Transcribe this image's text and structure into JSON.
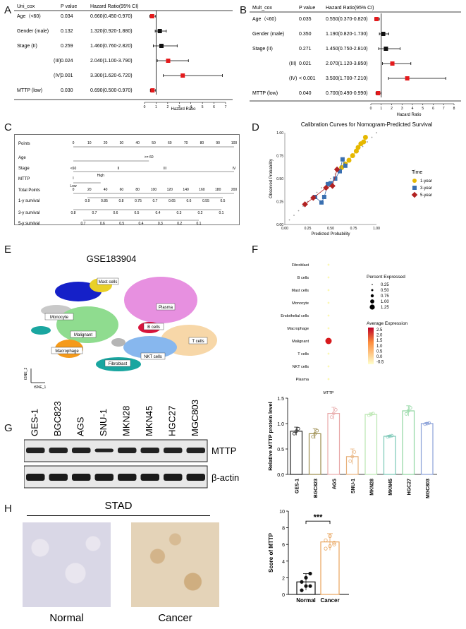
{
  "panels": {
    "A": "A",
    "B": "B",
    "C": "C",
    "D": "D",
    "E": "E",
    "F": "F",
    "G": "G",
    "H": "H"
  },
  "colors": {
    "red": "#e41a1c",
    "black": "#111111",
    "gold": "#e6b800",
    "blue": "#3a6fb0",
    "darkred": "#b22222"
  },
  "panelA": {
    "headers": {
      "col1": "Uni_cox",
      "col2": "P value",
      "col3": "Hazard Ratio(95% CI)"
    },
    "rows": [
      {
        "label": "Age（<60)",
        "p": "0.034",
        "hr": "0.660(0.450-0.970)"
      },
      {
        "label": "Gender (male)",
        "p": "0.132",
        "hr": "1.320(0.920-1.880)"
      },
      {
        "label": "Stage (II)",
        "p": "0.259",
        "hr": "1.460(0.760-2.820)"
      },
      {
        "label": "(III)",
        "p": "0.024",
        "hr": "2.040(1.100-3.790)"
      },
      {
        "label": "(IV)",
        "p": "0.001",
        "hr": "3.300(1.620-6.720)"
      },
      {
        "label": "MTTP (low)",
        "p": "0.030",
        "hr": "0.690(0.500-0.970)"
      }
    ],
    "axis_ticks": [
      "0",
      "1",
      "2",
      "3",
      "4",
      "5",
      "6",
      "7"
    ],
    "xlabel": "Hazard Ratio",
    "chart_data": {
      "type": "forest",
      "x_range": [
        0,
        7
      ],
      "values": [
        0.66,
        1.32,
        1.46,
        2.04,
        3.3,
        0.69
      ],
      "lower": [
        0.45,
        0.92,
        0.76,
        1.1,
        1.62,
        0.5
      ],
      "upper": [
        0.97,
        1.88,
        2.82,
        3.79,
        6.72,
        0.97
      ]
    }
  },
  "panelB": {
    "headers": {
      "col1": "Mult_cox",
      "col2": "P value",
      "col3": "Hazard Ratio(95% CI)"
    },
    "rows": [
      {
        "label": "Age（<60)",
        "p": "0.035",
        "hr": "0.550(0.370-0.820)"
      },
      {
        "label": "Gender (male)",
        "p": "0.350",
        "hr": "1.190(0.820-1.730)"
      },
      {
        "label": "Stage (II)",
        "p": "0.271",
        "hr": "1.450(0.750-2.810)"
      },
      {
        "label": "(III)",
        "p": "0.021",
        "hr": "2.070(1.120-3.850)"
      },
      {
        "label": "(IV)",
        "p": "< 0.001",
        "hr": "3.500(1.700-7.210)"
      },
      {
        "label": "MTTP (low)",
        "p": "0.040",
        "hr": "0.700(0.490-0.990)"
      }
    ],
    "axis_ticks": [
      "0",
      "1",
      "2",
      "3",
      "4",
      "5",
      "6",
      "7",
      "8"
    ],
    "xlabel": "Hazard Ratio",
    "chart_data": {
      "type": "forest",
      "x_range": [
        0,
        8
      ],
      "values": [
        0.55,
        1.19,
        1.45,
        2.07,
        3.5,
        0.7
      ],
      "lower": [
        0.37,
        0.82,
        0.75,
        1.12,
        1.7,
        0.49
      ],
      "upper": [
        0.82,
        1.73,
        2.81,
        3.85,
        7.21,
        0.99
      ]
    }
  },
  "panelC": {
    "rows": [
      {
        "label": "Points"
      },
      {
        "label": "Age"
      },
      {
        "label": "Stage"
      },
      {
        "label": "MTTP"
      },
      {
        "label": "Total Points"
      },
      {
        "label": "1-y survival"
      },
      {
        "label": "3-y survival"
      },
      {
        "label": "5-y survival"
      }
    ],
    "points_ticks": [
      "0",
      "10",
      "20",
      "30",
      "40",
      "50",
      "60",
      "70",
      "80",
      "90",
      "100"
    ],
    "age_labels": {
      "low": "<60",
      ">60": ">= 60"
    },
    "stage_labels": [
      "I",
      "II",
      "III",
      "IV"
    ],
    "mttp_labels": {
      "high": "High",
      "low": "Low"
    },
    "total_ticks": [
      "0",
      "20",
      "40",
      "60",
      "80",
      "100",
      "120",
      "140",
      "160",
      "180",
      "200"
    ],
    "surv1_ticks": [
      "0.9",
      "0.85",
      "0.8",
      "0.75",
      "0.7",
      "0.65",
      "0.6",
      "0.55",
      "0.5"
    ],
    "surv3_ticks": [
      "0.8",
      "0.7",
      "0.6",
      "0.5",
      "0.4",
      "0.3",
      "0.2",
      "0.1"
    ],
    "surv5_ticks": [
      "0.7",
      "0.6",
      "0.5",
      "0.4",
      "0.3",
      "0.2",
      "0.1"
    ]
  },
  "panelD": {
    "chart_data": {
      "type": "line",
      "title": "Calibration Curves for Nomogram-Predicted Survival",
      "xlabel": "Predicted Probability",
      "ylabel": "Observed Probability",
      "x_ticks": [
        "0.00",
        "0.25",
        "0.50",
        "0.75",
        "1.00"
      ],
      "y_ticks": [
        "0.00",
        "0.25",
        "0.50",
        "0.75",
        "1.00"
      ],
      "xlim": [
        0,
        1
      ],
      "ylim": [
        0,
        1
      ],
      "legend_title": "Time",
      "series": [
        {
          "name": "1-year",
          "x": [
            0.62,
            0.66,
            0.7,
            0.74,
            0.78,
            0.8,
            0.83,
            0.86,
            0.88
          ],
          "y": [
            0.62,
            0.66,
            0.7,
            0.75,
            0.8,
            0.84,
            0.88,
            0.9,
            0.95
          ]
        },
        {
          "name": "3-year",
          "x": [
            0.33,
            0.4,
            0.43,
            0.47,
            0.5,
            0.55,
            0.6,
            0.63,
            0.66
          ],
          "y": [
            0.3,
            0.24,
            0.3,
            0.44,
            0.45,
            0.5,
            0.58,
            0.71,
            0.64
          ]
        },
        {
          "name": "5-year",
          "x": [
            0.22,
            0.31,
            0.45,
            0.52,
            0.57
          ],
          "y": [
            0.22,
            0.29,
            0.4,
            0.42,
            0.6
          ]
        }
      ]
    }
  },
  "panelE": {
    "title": "GSE183904",
    "xlabel": "tSNE_1",
    "ylabel": "tSNE_2",
    "clusters": [
      "Mast cells",
      "Plasma",
      "Monocyte",
      "Malignant",
      "B cells",
      "T cells",
      "Macrophage",
      "NKT cells",
      "Fibroblast"
    ]
  },
  "panelF": {
    "cell_types": [
      "Fibroblast",
      "B cells",
      "Mast cells",
      "Monocyte",
      "Endothelial cells",
      "Macrophage",
      "Malignant",
      "T cells",
      "NKT cells",
      "Plasma"
    ],
    "xlabel": "MTTP",
    "legend_pct_title": "Percent Expressed",
    "pct_values": [
      "0.25",
      "0.50",
      "0.75",
      "1.00",
      "1.25"
    ],
    "legend_avg_title": "Average Expression",
    "avg_values": [
      "2.5",
      "2.0",
      "1.5",
      "1.0",
      "0.5",
      "0.0",
      "-0.5"
    ]
  },
  "panelG": {
    "cell_lines": [
      "GES-1",
      "BGC823",
      "AGS",
      "SNU-1",
      "MKN28",
      "MKN45",
      "HGC27",
      "MGC803"
    ],
    "band_labels": {
      "mttp": "MTTP",
      "actin": "β-actin"
    },
    "chart_data": {
      "type": "bar",
      "ylabel": "Relative MTTP protein level",
      "y_ticks": [
        "0.0",
        "0.5",
        "1.0",
        "1.5"
      ],
      "ylim": [
        0,
        1.5
      ],
      "categories": [
        "GES-1",
        "BGC823",
        "AGS",
        "SNU-1",
        "MKN28",
        "MKN45",
        "HGC27",
        "MGC803"
      ],
      "values": [
        0.85,
        0.8,
        1.2,
        0.35,
        1.18,
        0.75,
        1.25,
        1.0
      ],
      "errors": [
        0.08,
        0.1,
        0.12,
        0.15,
        0.03,
        0.02,
        0.1,
        0.02
      ]
    }
  },
  "panelH": {
    "title": "STAD",
    "labels": {
      "normal": "Normal",
      "cancer": "Cancer"
    },
    "chart_data": {
      "type": "bar",
      "ylabel": "Score of MTTP",
      "y_ticks": [
        "0",
        "2",
        "4",
        "6",
        "8",
        "10"
      ],
      "ylim": [
        0,
        10
      ],
      "categories": [
        "Normal",
        "Cancer"
      ],
      "values": [
        1.5,
        6.3
      ],
      "errors": [
        1.0,
        1.0
      ],
      "points": [
        [
          0.5,
          1.0,
          1.0,
          1.5,
          2.0,
          2.5
        ],
        [
          5.5,
          5.8,
          6.0,
          6.5,
          7.0,
          6.2
        ]
      ],
      "significance": "***"
    }
  }
}
